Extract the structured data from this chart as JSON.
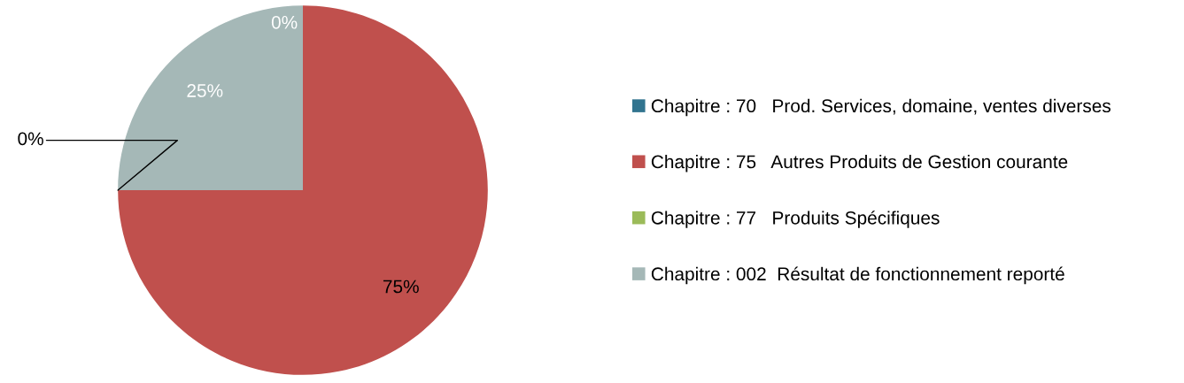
{
  "chart_data": {
    "type": "pie",
    "categories": [
      "Chapitre : 70   Prod. Services, domaine, ventes diverses",
      "Chapitre : 75   Autres Produits de Gestion courante",
      "Chapitre : 77   Produits Spécifiques",
      "Chapitre : 002  Résultat de fonctionnement reporté"
    ],
    "values": [
      0,
      75,
      0,
      25
    ],
    "colors": [
      "#31748f",
      "#c0504d",
      "#9bbb59",
      "#a5b8b7"
    ],
    "value_labels": [
      "0%",
      "75%",
      "0%",
      "25%"
    ],
    "legend": "right"
  }
}
